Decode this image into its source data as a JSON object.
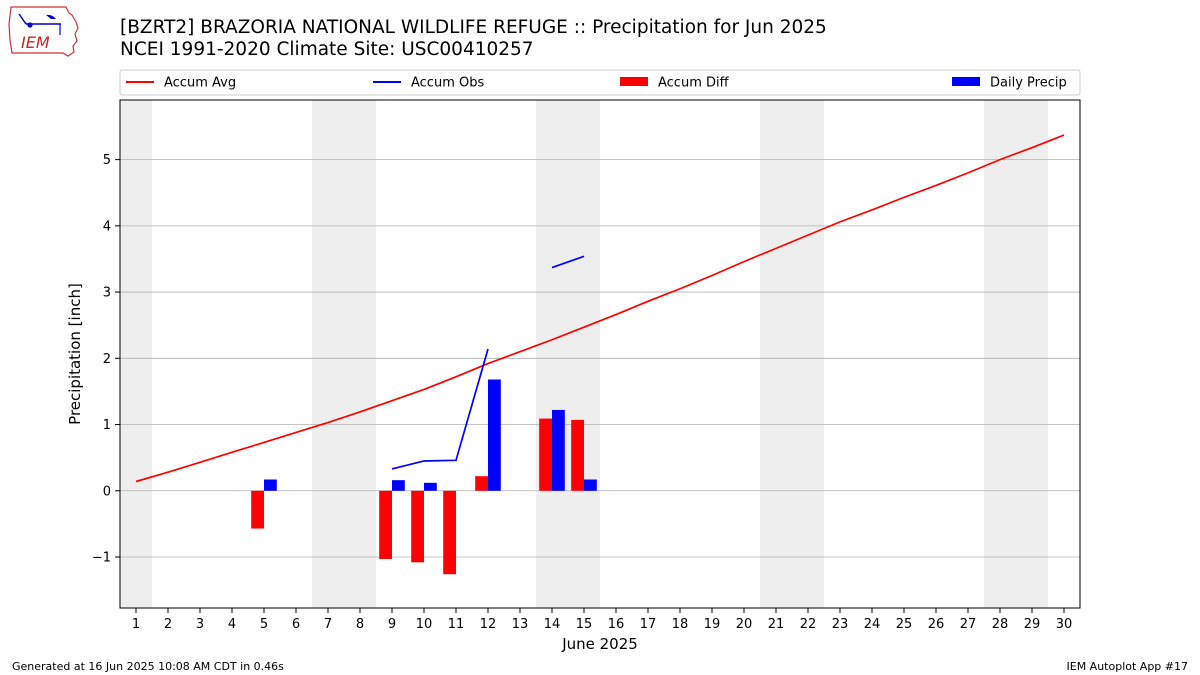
{
  "header": {
    "title_line1": "[BZRT2] BRAZORIA NATIONAL WILDLIFE REFUGE :: Precipitation for Jun 2025",
    "title_line2": "NCEI 1991-2020 Climate Site: USC00410257"
  },
  "logo": {
    "text": "IEM",
    "icon": "iowa-state-outline-icon"
  },
  "footer": {
    "generated": "Generated at 16 Jun 2025 10:08 AM CDT in 0.46s",
    "app": "IEM Autoplot App #17"
  },
  "colors": {
    "avg": "#ff0000",
    "obs": "#0000ff",
    "diff": "#ff0000",
    "daily": "#0000ff",
    "weekend": "#eeeeee",
    "grid": "#b0b0b0"
  },
  "chart_data": {
    "type": "bar",
    "xlabel": "June 2025",
    "ylabel": "Precipitation [inch]",
    "xlim": [
      0.5,
      30.5
    ],
    "ylim": [
      -1.77,
      5.9
    ],
    "yticks": [
      -1,
      0,
      1,
      2,
      3,
      4,
      5
    ],
    "ytick_labels": [
      "−1",
      "0",
      "1",
      "2",
      "3",
      "4",
      "5"
    ],
    "days": [
      1,
      2,
      3,
      4,
      5,
      6,
      7,
      8,
      9,
      10,
      11,
      12,
      13,
      14,
      15,
      16,
      17,
      18,
      19,
      20,
      21,
      22,
      23,
      24,
      25,
      26,
      27,
      28,
      29,
      30
    ],
    "grid": true,
    "legend_placement": "top",
    "weekend_days": [
      1,
      7,
      8,
      14,
      15,
      21,
      22,
      28,
      29
    ],
    "legend": [
      {
        "label": "Accum Avg",
        "kind": "line",
        "color": "#ff0000"
      },
      {
        "label": "Accum Obs",
        "kind": "line",
        "color": "#0000ff"
      },
      {
        "label": "Accum Diff",
        "kind": "bar",
        "color": "#ff0000"
      },
      {
        "label": "Daily Precip",
        "kind": "bar",
        "color": "#0000ff"
      }
    ],
    "accum_avg": {
      "name": "Accum Avg",
      "x": [
        1,
        2,
        3,
        4,
        5,
        6,
        7,
        8,
        9,
        10,
        11,
        12,
        13,
        14,
        15,
        16,
        17,
        18,
        19,
        20,
        21,
        22,
        23,
        24,
        25,
        26,
        27,
        28,
        29,
        30
      ],
      "values": [
        0.14,
        0.28,
        0.43,
        0.58,
        0.73,
        0.88,
        1.03,
        1.19,
        1.36,
        1.53,
        1.72,
        1.92,
        2.1,
        2.28,
        2.47,
        2.66,
        2.86,
        3.05,
        3.25,
        3.46,
        3.66,
        3.86,
        4.06,
        4.24,
        4.43,
        4.61,
        4.8,
        5.0,
        5.18,
        5.37
      ]
    },
    "accum_obs": {
      "name": "Accum Obs",
      "segments": [
        {
          "x": [
            9,
            10,
            11,
            12
          ],
          "values": [
            0.33,
            0.45,
            0.46,
            2.14
          ]
        },
        {
          "x": [
            14,
            15
          ],
          "values": [
            3.37,
            3.54
          ]
        }
      ]
    },
    "accum_diff": {
      "name": "Accum Diff",
      "x": [
        5,
        9,
        10,
        11,
        12,
        14,
        15
      ],
      "values": [
        -0.57,
        -1.03,
        -1.08,
        -1.26,
        0.22,
        1.09,
        1.07
      ]
    },
    "daily_precip": {
      "name": "Daily Precip",
      "x": [
        5,
        9,
        10,
        11,
        12,
        14,
        15
      ],
      "values": [
        0.17,
        0.16,
        0.12,
        0.0,
        1.68,
        1.22,
        0.17
      ]
    }
  }
}
